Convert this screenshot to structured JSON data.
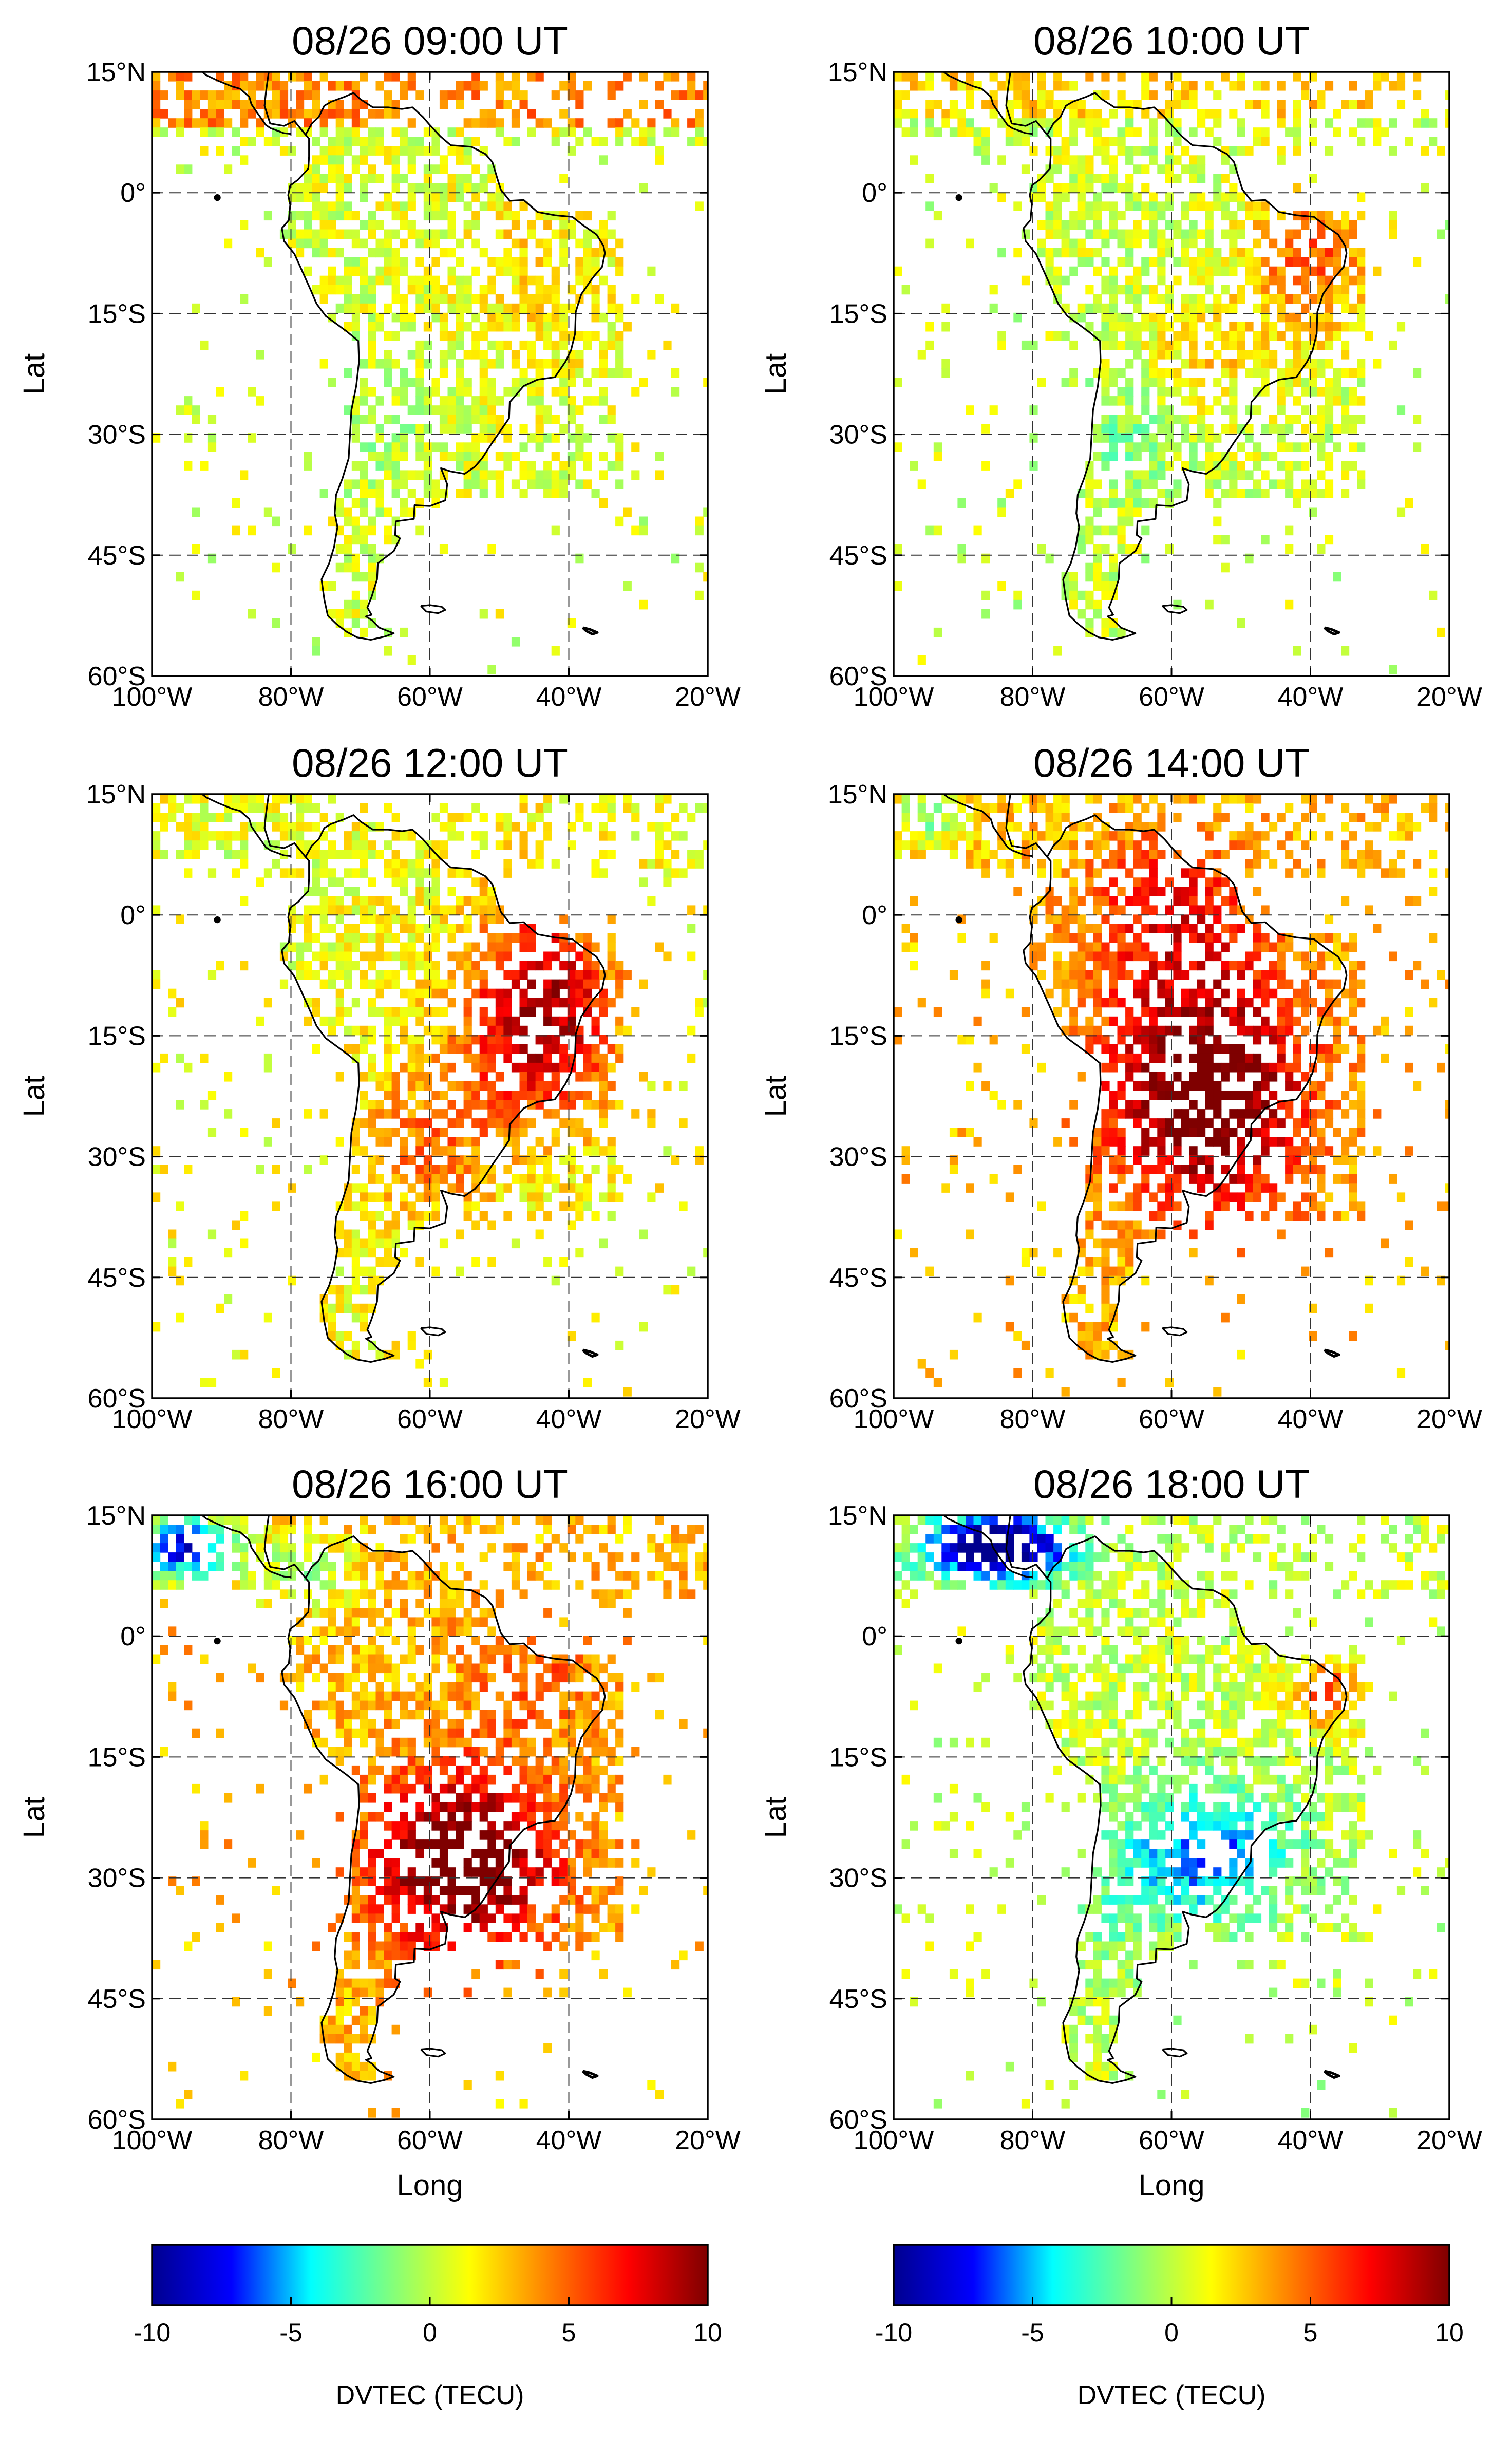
{
  "figure": {
    "panels": [
      {
        "title": "08/26 09:00 UT",
        "state": "quiet",
        "ylabel": "Lat",
        "xlabel": ""
      },
      {
        "title": "08/26 10:00 UT",
        "state": "ne_positive",
        "ylabel": "Lat",
        "xlabel": ""
      },
      {
        "title": "08/26 12:00 UT",
        "state": "positive",
        "ylabel": "Lat",
        "xlabel": ""
      },
      {
        "title": "08/26 14:00 UT",
        "state": "strong_positive",
        "ylabel": "Lat",
        "xlabel": ""
      },
      {
        "title": "08/26 16:00 UT",
        "state": "strong_positive_b",
        "ylabel": "Lat",
        "xlabel": "Long"
      },
      {
        "title": "08/26 18:00 UT",
        "state": "negative",
        "ylabel": "Lat",
        "xlabel": "Long"
      }
    ],
    "lat_ticks": [
      "15°N",
      "0°",
      "15°S",
      "30°S",
      "45°S",
      "60°S"
    ],
    "lat_values": [
      15,
      0,
      -15,
      -30,
      -45,
      -60
    ],
    "lon_ticks": [
      "100°W",
      "80°W",
      "60°W",
      "40°W",
      "20°W"
    ],
    "lon_values": [
      -100,
      -80,
      -60,
      -40,
      -20
    ],
    "colorbars": [
      {
        "ticks": [
          "-10",
          "-5",
          "0",
          "5",
          "10"
        ],
        "label": "DVTEC (TECU)"
      },
      {
        "ticks": [
          "-10",
          "-5",
          "0",
          "5",
          "10"
        ],
        "label": "DVTEC (TECU)"
      }
    ],
    "colormap": [
      "#00008f",
      "#0000ff",
      "#00ffff",
      "#7fff7f",
      "#ffff00",
      "#ff7f00",
      "#ff0000",
      "#7f0000"
    ]
  },
  "chart_data": {
    "type": "heatmap",
    "variable": "DVTEC (TECU)",
    "color_range": [
      -10,
      10
    ],
    "xlim": [
      -100,
      -20
    ],
    "ylim": [
      -60,
      15
    ],
    "xlabel": "Long",
    "ylabel": "Lat",
    "maps": [
      {
        "title": "08/26 09:00 UT",
        "description": "mostly near-zero values (~0 to 2 TECU) over the continent, slightly positive in the north"
      },
      {
        "title": "08/26 10:00 UT",
        "description": "positive (~4-7 TECU) in northeast Brazil, near-zero elsewhere"
      },
      {
        "title": "08/26 12:00 UT",
        "description": "strong positive (~5-10 TECU) centred over central/eastern Brazil"
      },
      {
        "title": "08/26 14:00 UT",
        "description": "very strong positive (~8-10 TECU) over most of the continent"
      },
      {
        "title": "08/26 16:00 UT",
        "description": "very strong positive (~8-10 TECU) over southern Brazil / Argentina, negative patches in the northwest"
      },
      {
        "title": "08/26 18:00 UT",
        "description": "negative (~-3 to -6 TECU) in the south, strongly negative (~-10 TECU) near the Caribbean"
      }
    ]
  }
}
